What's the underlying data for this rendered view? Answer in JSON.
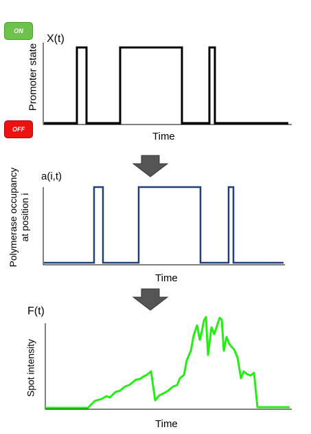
{
  "badges": {
    "on": "ON",
    "off": "OFF"
  },
  "panels": {
    "promoter": {
      "ylabel": "X(t)",
      "yaxis_title": "Promoter state",
      "xlabel": "Time",
      "color": "#000000"
    },
    "polymerase": {
      "ylabel": "a(i,t)",
      "yaxis_title_line1": "Polymerase occupancy",
      "yaxis_title_line2": "at position i",
      "xlabel": "Time",
      "color": "#1f3f7a"
    },
    "spot": {
      "ylabel": "F(t)",
      "yaxis_title": "Spot intensity",
      "xlabel": "Time",
      "color": "#22ee11"
    }
  },
  "arrow_color": "#555555"
}
